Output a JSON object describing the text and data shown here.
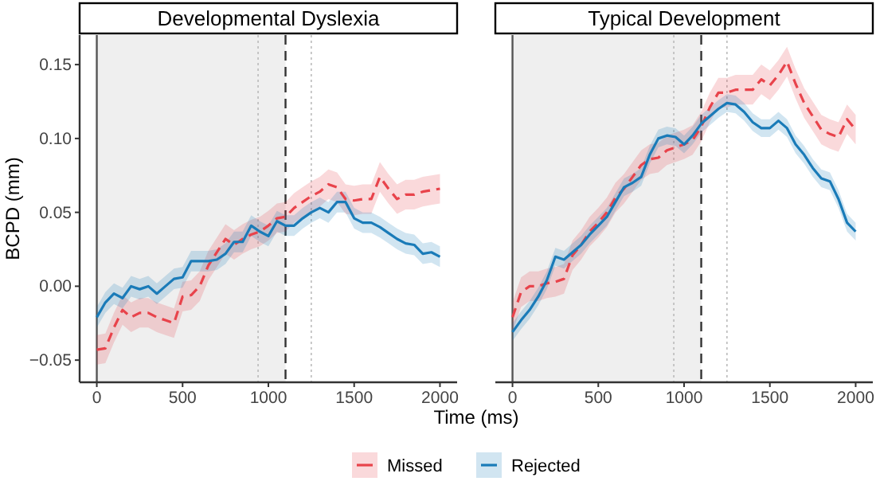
{
  "chart_data": [
    {
      "type": "line",
      "title": "Developmental Dyslexia",
      "xlabel": "Time (ms)",
      "ylabel": "BCPD (mm)",
      "legend": "bottom",
      "grid": false,
      "x": [
        0,
        50,
        100,
        150,
        200,
        250,
        300,
        350,
        400,
        450,
        500,
        550,
        600,
        650,
        700,
        750,
        800,
        850,
        900,
        950,
        1000,
        1050,
        1100,
        1150,
        1200,
        1250,
        1300,
        1350,
        1400,
        1450,
        1500,
        1550,
        1600,
        1650,
        1700,
        1750,
        1800,
        1850,
        1900,
        1950,
        2000
      ],
      "xlim": [
        -100,
        2100
      ],
      "xticks": [
        0,
        500,
        1000,
        1500,
        2000
      ],
      "ylim": [
        -0.065,
        0.17
      ],
      "yticks": [
        {
          "value": -0.05,
          "label": "−0.05"
        },
        {
          "value": 0,
          "label": "0.00"
        },
        {
          "value": 0.05,
          "label": "0.05"
        },
        {
          "value": 0.1,
          "label": "0.10"
        },
        {
          "value": 0.15,
          "label": "0.15"
        }
      ],
      "bands": [
        {
          "axis": "x",
          "from": 0,
          "to": 1100,
          "color": "#efefef"
        }
      ],
      "ref_lines": [
        {
          "axis": "x",
          "value": 0,
          "color": "#555555",
          "line_style": "solid"
        },
        {
          "axis": "x",
          "value": 940,
          "color": "#bbbbbb",
          "line_style": "dotted"
        },
        {
          "axis": "x",
          "value": 1100,
          "color": "#333333",
          "line_style": "dashed"
        },
        {
          "axis": "x",
          "value": 1250,
          "color": "#bbbbbb",
          "line_style": "dotted"
        }
      ],
      "series": [
        {
          "name": "Missed",
          "color": "#e8434b",
          "line_style": "dashed",
          "values": [
            -0.043,
            -0.042,
            -0.028,
            -0.016,
            -0.021,
            -0.018,
            -0.018,
            -0.021,
            -0.023,
            -0.025,
            -0.007,
            -0.006,
            0,
            0.014,
            0.023,
            0.032,
            0.028,
            0.032,
            0.035,
            0.037,
            0.041,
            0.046,
            0.047,
            0.053,
            0.057,
            0.061,
            0.064,
            0.069,
            0.067,
            0.059,
            0.058,
            0.059,
            0.059,
            0.074,
            0.066,
            0.059,
            0.062,
            0.062,
            0.064,
            0.065,
            0.066
          ],
          "lower": [
            -0.053,
            -0.052,
            -0.038,
            -0.026,
            -0.031,
            -0.028,
            -0.028,
            -0.031,
            -0.033,
            -0.035,
            -0.017,
            -0.016,
            -0.01,
            0.004,
            0.013,
            0.022,
            0.018,
            0.022,
            0.025,
            0.027,
            0.031,
            0.036,
            0.037,
            0.043,
            0.047,
            0.051,
            0.054,
            0.059,
            0.057,
            0.049,
            0.048,
            0.049,
            0.049,
            0.064,
            0.056,
            0.049,
            0.052,
            0.052,
            0.054,
            0.055,
            0.056
          ],
          "upper": [
            -0.033,
            -0.032,
            -0.018,
            -0.006,
            -0.011,
            -0.008,
            -0.008,
            -0.011,
            -0.013,
            -0.015,
            0.003,
            0.004,
            0.01,
            0.024,
            0.033,
            0.042,
            0.038,
            0.042,
            0.045,
            0.047,
            0.051,
            0.056,
            0.057,
            0.063,
            0.067,
            0.071,
            0.074,
            0.079,
            0.077,
            0.069,
            0.068,
            0.069,
            0.069,
            0.084,
            0.076,
            0.069,
            0.072,
            0.072,
            0.074,
            0.075,
            0.076
          ]
        },
        {
          "name": "Rejected",
          "color": "#1a7bb8",
          "line_style": "solid",
          "values": [
            -0.021,
            -0.011,
            -0.005,
            -0.008,
            0,
            -0.002,
            0,
            -0.005,
            0,
            0.005,
            0.006,
            0.017,
            0.017,
            0.017,
            0.018,
            0.022,
            0.03,
            0.03,
            0.041,
            0.037,
            0.034,
            0.044,
            0.041,
            0.041,
            0.046,
            0.05,
            0.053,
            0.05,
            0.057,
            0.057,
            0.046,
            0.043,
            0.043,
            0.04,
            0.036,
            0.032,
            0.029,
            0.028,
            0.022,
            0.023,
            0.02
          ],
          "lower": [
            -0.028,
            -0.018,
            -0.012,
            -0.015,
            -0.007,
            -0.009,
            -0.007,
            -0.012,
            -0.007,
            -0.002,
            -0.001,
            0.01,
            0.01,
            0.01,
            0.011,
            0.015,
            0.023,
            0.023,
            0.034,
            0.03,
            0.027,
            0.037,
            0.034,
            0.034,
            0.039,
            0.043,
            0.046,
            0.043,
            0.05,
            0.05,
            0.039,
            0.036,
            0.036,
            0.033,
            0.029,
            0.025,
            0.022,
            0.021,
            0.015,
            0.016,
            0.013
          ],
          "upper": [
            -0.014,
            -0.004,
            0.002,
            -0.001,
            0.007,
            0.005,
            0.007,
            0.002,
            0.007,
            0.012,
            0.013,
            0.024,
            0.024,
            0.024,
            0.025,
            0.029,
            0.037,
            0.037,
            0.048,
            0.044,
            0.041,
            0.051,
            0.048,
            0.048,
            0.053,
            0.057,
            0.06,
            0.057,
            0.064,
            0.064,
            0.053,
            0.05,
            0.05,
            0.047,
            0.043,
            0.039,
            0.036,
            0.035,
            0.029,
            0.03,
            0.027
          ]
        }
      ]
    },
    {
      "type": "line",
      "title": "Typical Development",
      "grid": false,
      "tick_labels": "x",
      "x": [
        0,
        50,
        100,
        150,
        200,
        250,
        300,
        350,
        400,
        450,
        500,
        550,
        600,
        650,
        700,
        750,
        800,
        850,
        900,
        950,
        1000,
        1050,
        1100,
        1150,
        1200,
        1250,
        1300,
        1350,
        1400,
        1450,
        1500,
        1550,
        1600,
        1650,
        1700,
        1750,
        1800,
        1850,
        1900,
        1950,
        2000
      ],
      "xlim": [
        -100,
        2100
      ],
      "xticks": [
        0,
        500,
        1000,
        1500,
        2000
      ],
      "ylim": [
        -0.065,
        0.17
      ],
      "bands": [
        {
          "axis": "x",
          "from": 0,
          "to": 1100,
          "color": "#efefef"
        }
      ],
      "ref_lines": [
        {
          "axis": "x",
          "value": 0,
          "color": "#555555",
          "line_style": "solid"
        },
        {
          "axis": "x",
          "value": 940,
          "color": "#bbbbbb",
          "line_style": "dotted"
        },
        {
          "axis": "x",
          "value": 1100,
          "color": "#333333",
          "line_style": "dashed"
        },
        {
          "axis": "x",
          "value": 1250,
          "color": "#bbbbbb",
          "line_style": "dotted"
        }
      ],
      "series": [
        {
          "color": "#e8434b",
          "line_style": "dashed",
          "values": [
            -0.021,
            -0.004,
            0,
            0,
            0.002,
            0.003,
            0.005,
            0.021,
            0.028,
            0.037,
            0.043,
            0.05,
            0.06,
            0.066,
            0.074,
            0.082,
            0.086,
            0.087,
            0.092,
            0.094,
            0.096,
            0.099,
            0.108,
            0.121,
            0.131,
            0.131,
            0.133,
            0.133,
            0.133,
            0.14,
            0.136,
            0.143,
            0.152,
            0.137,
            0.124,
            0.115,
            0.106,
            0.103,
            0.101,
            0.113,
            0.106
          ],
          "lower": [
            -0.031,
            -0.014,
            -0.01,
            -0.01,
            -0.008,
            -0.007,
            -0.005,
            0.011,
            0.018,
            0.027,
            0.033,
            0.04,
            0.05,
            0.056,
            0.064,
            0.072,
            0.076,
            0.077,
            0.082,
            0.084,
            0.086,
            0.089,
            0.098,
            0.111,
            0.121,
            0.121,
            0.123,
            0.123,
            0.123,
            0.13,
            0.126,
            0.133,
            0.142,
            0.127,
            0.114,
            0.105,
            0.096,
            0.093,
            0.091,
            0.103,
            0.096
          ],
          "upper": [
            -0.011,
            0.006,
            0.01,
            0.01,
            0.012,
            0.013,
            0.015,
            0.031,
            0.038,
            0.047,
            0.053,
            0.06,
            0.07,
            0.076,
            0.084,
            0.092,
            0.096,
            0.097,
            0.102,
            0.104,
            0.106,
            0.109,
            0.118,
            0.131,
            0.141,
            0.141,
            0.143,
            0.143,
            0.143,
            0.15,
            0.146,
            0.153,
            0.162,
            0.147,
            0.134,
            0.125,
            0.116,
            0.113,
            0.111,
            0.123,
            0.116
          ]
        },
        {
          "color": "#1a7bb8",
          "line_style": "solid",
          "values": [
            -0.031,
            -0.023,
            -0.016,
            -0.007,
            0.004,
            0.02,
            0.018,
            0.023,
            0.028,
            0.035,
            0.041,
            0.047,
            0.057,
            0.067,
            0.07,
            0.074,
            0.089,
            0.1,
            0.102,
            0.101,
            0.096,
            0.102,
            0.11,
            0.115,
            0.12,
            0.124,
            0.123,
            0.118,
            0.111,
            0.107,
            0.107,
            0.112,
            0.107,
            0.096,
            0.089,
            0.08,
            0.073,
            0.071,
            0.059,
            0.043,
            0.037
          ],
          "lower": [
            -0.037,
            -0.029,
            -0.022,
            -0.013,
            -0.002,
            0.014,
            0.012,
            0.017,
            0.022,
            0.029,
            0.035,
            0.041,
            0.051,
            0.061,
            0.064,
            0.068,
            0.083,
            0.094,
            0.096,
            0.095,
            0.09,
            0.096,
            0.104,
            0.109,
            0.114,
            0.118,
            0.117,
            0.112,
            0.105,
            0.101,
            0.101,
            0.106,
            0.101,
            0.09,
            0.083,
            0.074,
            0.067,
            0.065,
            0.053,
            0.037,
            0.031
          ],
          "upper": [
            -0.025,
            -0.017,
            -0.01,
            -0.001,
            0.01,
            0.026,
            0.024,
            0.029,
            0.034,
            0.041,
            0.047,
            0.053,
            0.063,
            0.073,
            0.076,
            0.08,
            0.095,
            0.106,
            0.108,
            0.107,
            0.102,
            0.108,
            0.116,
            0.121,
            0.126,
            0.13,
            0.129,
            0.124,
            0.117,
            0.113,
            0.113,
            0.118,
            0.113,
            0.102,
            0.095,
            0.086,
            0.079,
            0.077,
            0.065,
            0.049,
            0.043
          ]
        }
      ]
    }
  ]
}
